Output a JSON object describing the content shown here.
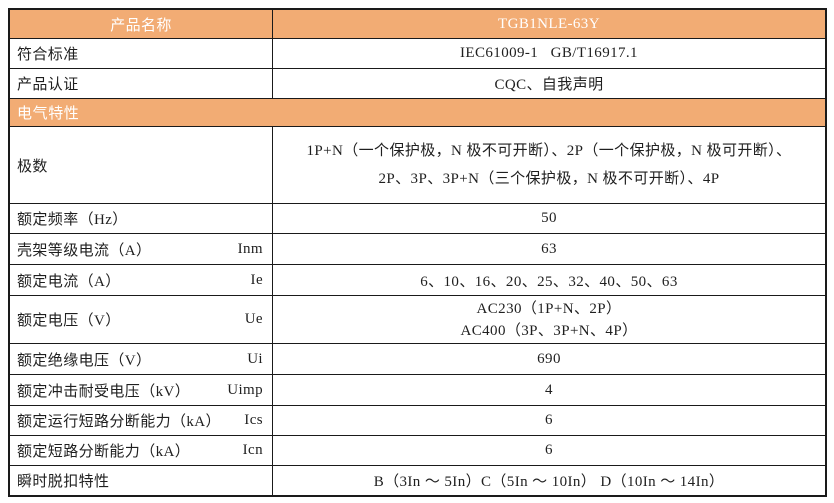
{
  "colors": {
    "header_bg": "#F2AC74",
    "header_text": "#FFFFFF",
    "border": "#1A1A1A",
    "body_text": "#1F1F1F"
  },
  "table": {
    "product_row": {
      "label": "产品名称",
      "value": "TGB1NLE-63Y"
    },
    "standards_row": {
      "label": "符合标准",
      "value": "IEC61009-1   GB/T16917.1"
    },
    "certification_row": {
      "label": "产品认证",
      "value": "CQC、自我声明"
    },
    "section_header": "电气特性",
    "spec_rows": [
      {
        "label": "极数",
        "symbol": "",
        "value_lines": [
          "1P+N（一个保护极，N 极不可开断）、2P（一个保护极，N 极可开断）、",
          "2P、3P、3P+N（三个保护极，N 极不可开断）、4P"
        ]
      },
      {
        "label": "额定频率（Hz）",
        "symbol": "",
        "value_lines": [
          "50"
        ]
      },
      {
        "label": "壳架等级电流（A）",
        "symbol": "Inm",
        "value_lines": [
          "63"
        ]
      },
      {
        "label": "额定电流（A）",
        "symbol": "Ie",
        "value_lines": [
          "6、10、16、20、25、32、40、50、63"
        ]
      },
      {
        "label": "额定电压（V）",
        "symbol": "Ue",
        "value_lines": [
          "AC230（1P+N、2P）",
          "AC400（3P、3P+N、4P）"
        ]
      },
      {
        "label": "额定绝缘电压（V）",
        "symbol": "Ui",
        "value_lines": [
          "690"
        ]
      },
      {
        "label": "额定冲击耐受电压（kV）",
        "symbol": "Uimp",
        "value_lines": [
          "4"
        ]
      },
      {
        "label": "额定运行短路分断能力（kA）",
        "symbol": "Ics",
        "value_lines": [
          "6"
        ]
      },
      {
        "label": "额定短路分断能力（kA）",
        "symbol": "Icn",
        "value_lines": [
          "6"
        ]
      },
      {
        "label": "瞬时脱扣特性",
        "symbol": "",
        "value_lines": [
          "B（3In ～ 5In）C（5In ～ 10In） D（10In ～ 14In）"
        ]
      }
    ]
  }
}
